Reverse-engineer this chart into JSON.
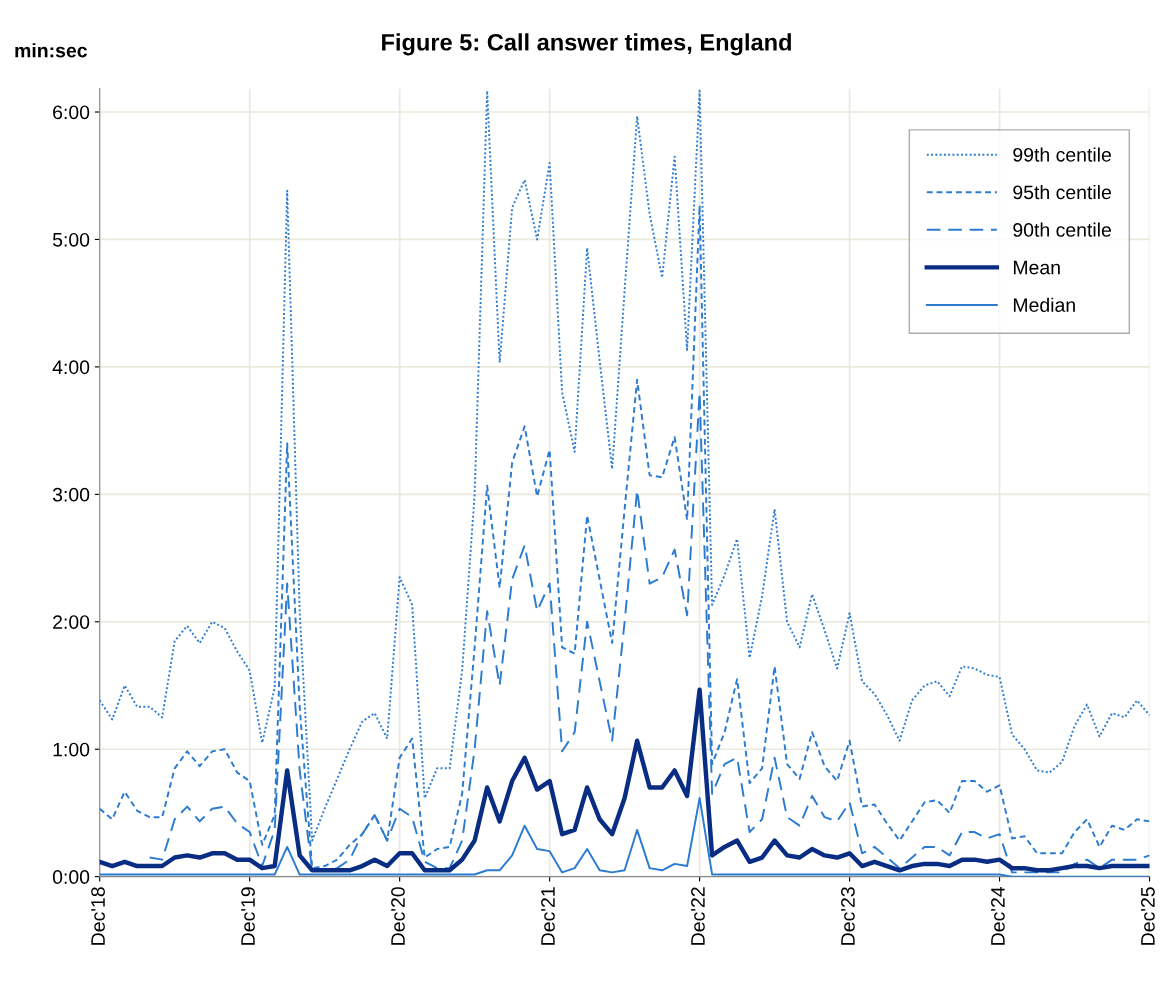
{
  "chart_data": {
    "type": "line",
    "title": "Figure 5: Call answer times, England",
    "ylabel": "min:sec",
    "x": [
      "2018-12",
      "2019-01",
      "2019-02",
      "2019-03",
      "2019-04",
      "2019-05",
      "2019-06",
      "2019-07",
      "2019-08",
      "2019-09",
      "2019-10",
      "2019-11",
      "2019-12",
      "2020-01",
      "2020-02",
      "2020-03",
      "2020-04",
      "2020-05",
      "2020-06",
      "2020-07",
      "2020-08",
      "2020-09",
      "2020-10",
      "2020-11",
      "2020-12",
      "2021-01",
      "2021-02",
      "2021-03",
      "2021-04",
      "2021-05",
      "2021-06",
      "2021-07",
      "2021-08",
      "2021-09",
      "2021-10",
      "2021-11",
      "2021-12",
      "2022-01",
      "2022-02",
      "2022-03",
      "2022-04",
      "2022-05",
      "2022-06",
      "2022-07",
      "2022-08",
      "2022-09",
      "2022-10",
      "2022-11",
      "2022-12",
      "2023-01",
      "2023-02",
      "2023-03",
      "2023-04",
      "2023-05",
      "2023-06",
      "2023-07",
      "2023-08",
      "2023-09",
      "2023-10",
      "2023-11",
      "2023-12",
      "2024-01",
      "2024-02",
      "2024-03",
      "2024-04",
      "2024-05",
      "2024-06",
      "2024-07",
      "2024-08",
      "2024-09",
      "2024-10",
      "2024-11",
      "2024-12",
      "2025-01",
      "2025-02",
      "2025-03",
      "2025-04",
      "2025-05",
      "2025-06",
      "2025-07",
      "2025-08",
      "2025-09",
      "2025-10",
      "2025-11",
      "2025-12"
    ],
    "series": [
      {
        "name": "99th centile",
        "color": "#2b7bd0",
        "line_style": "dotted",
        "values": [
          83,
          74,
          90,
          80,
          80,
          75,
          111,
          118,
          110,
          120,
          117,
          106,
          97,
          63,
          89,
          323,
          125,
          17,
          32,
          46,
          60,
          73,
          77,
          65,
          141,
          128,
          37,
          51,
          51,
          97,
          180,
          370,
          242,
          315,
          328,
          300,
          336,
          228,
          200,
          296,
          243,
          192,
          276,
          358,
          312,
          282,
          339,
          248,
          370,
          128,
          142,
          159,
          103,
          132,
          173,
          120,
          108,
          133,
          116,
          98,
          124,
          92,
          86,
          76,
          64,
          83,
          90,
          92,
          85,
          99,
          98,
          95,
          94,
          67,
          60,
          50,
          49,
          54,
          71,
          81,
          66,
          77,
          75,
          83,
          76
        ]
      },
      {
        "name": "95th centile",
        "color": "#2b7bd0",
        "line_style": "dashed",
        "values": [
          32,
          27,
          40,
          31,
          28,
          28,
          51,
          59,
          52,
          59,
          60,
          49,
          45,
          15,
          29,
          204,
          80,
          4,
          5,
          8,
          15,
          20,
          29,
          17,
          56,
          65,
          9,
          13,
          14,
          39,
          108,
          184,
          136,
          195,
          212,
          179,
          201,
          108,
          105,
          170,
          140,
          110,
          173,
          234,
          189,
          188,
          207,
          168,
          316,
          53,
          68,
          93,
          44,
          51,
          99,
          53,
          46,
          68,
          52,
          45,
          64,
          33,
          34,
          25,
          17,
          26,
          35,
          36,
          30,
          45,
          45,
          40,
          43,
          18,
          19,
          11,
          11,
          11,
          21,
          27,
          14,
          24,
          22,
          27,
          26
        ]
      },
      {
        "name": "90th centile",
        "color": "#2b7bd0",
        "line_style": "longdash",
        "values": [
          null,
          null,
          null,
          null,
          9,
          8,
          27,
          33,
          26,
          32,
          33,
          25,
          21,
          5,
          22,
          138,
          50,
          3,
          3,
          4,
          8,
          20,
          29,
          17,
          32,
          28,
          7,
          4,
          4,
          17,
          60,
          125,
          90,
          140,
          156,
          125,
          138,
          59,
          68,
          120,
          92,
          64,
          120,
          182,
          138,
          141,
          154,
          123,
          228,
          39,
          53,
          56,
          21,
          27,
          56,
          28,
          24,
          38,
          28,
          26,
          35,
          11,
          14,
          9,
          4,
          9,
          14,
          14,
          10,
          21,
          21,
          18,
          20,
          2,
          2,
          2,
          2,
          2,
          6,
          8,
          4,
          8,
          8,
          8,
          10
        ]
      },
      {
        "name": "Mean",
        "color": "#0a2d84",
        "line_style": "solid",
        "values": [
          7,
          5,
          7,
          5,
          5,
          5,
          9,
          10,
          9,
          11,
          11,
          8,
          8,
          4,
          5,
          50,
          10,
          3,
          3,
          3,
          3,
          5,
          8,
          5,
          11,
          11,
          3,
          3,
          3,
          8,
          17,
          42,
          26,
          45,
          56,
          41,
          45,
          20,
          22,
          42,
          27,
          20,
          37,
          64,
          42,
          42,
          50,
          38,
          88,
          10,
          14,
          17,
          7,
          9,
          17,
          10,
          9,
          13,
          10,
          9,
          11,
          5,
          7,
          5,
          3,
          5,
          6,
          6,
          5,
          8,
          8,
          7,
          8,
          4,
          4,
          3,
          3,
          4,
          5,
          5,
          4,
          5,
          5,
          5,
          5
        ]
      },
      {
        "name": "Median",
        "color": "#2b7bd0",
        "line_style": "solid",
        "values": [
          1,
          1,
          1,
          1,
          1,
          1,
          1,
          1,
          1,
          1,
          1,
          1,
          1,
          1,
          1,
          14,
          1,
          1,
          1,
          1,
          1,
          1,
          1,
          1,
          1,
          1,
          1,
          1,
          1,
          1,
          1,
          3,
          3,
          10,
          24,
          13,
          12,
          2,
          4,
          13,
          3,
          2,
          3,
          22,
          4,
          3,
          6,
          5,
          37,
          1,
          1,
          1,
          1,
          1,
          1,
          1,
          1,
          1,
          1,
          1,
          1,
          1,
          1,
          1,
          1,
          1,
          1,
          1,
          1,
          1,
          1,
          1,
          1,
          0,
          0,
          0,
          0,
          0,
          0,
          0,
          0,
          0,
          0,
          0,
          0
        ]
      }
    ],
    "xlim": [
      "2018-12",
      "2025-12"
    ],
    "xticks": [
      {
        "value": "2018-12",
        "label": "Dec'18"
      },
      {
        "value": "2019-12",
        "label": "Dec'19"
      },
      {
        "value": "2020-12",
        "label": "Dec'20"
      },
      {
        "value": "2021-12",
        "label": "Dec'21"
      },
      {
        "value": "2022-12",
        "label": "Dec'22"
      },
      {
        "value": "2023-12",
        "label": "Dec'23"
      },
      {
        "value": "2024-12",
        "label": "Dec'24"
      },
      {
        "value": "2025-12",
        "label": "Dec'25"
      }
    ],
    "ylim": [
      0,
      371
    ],
    "yticks": [
      {
        "value": 0,
        "label": "0:00"
      },
      {
        "value": 60,
        "label": "1:00"
      },
      {
        "value": 120,
        "label": "2:00"
      },
      {
        "value": 180,
        "label": "3:00"
      },
      {
        "value": 240,
        "label": "4:00"
      },
      {
        "value": 300,
        "label": "5:00"
      },
      {
        "value": 360,
        "label": "6:00"
      }
    ],
    "grid": true,
    "legend": "top right"
  }
}
